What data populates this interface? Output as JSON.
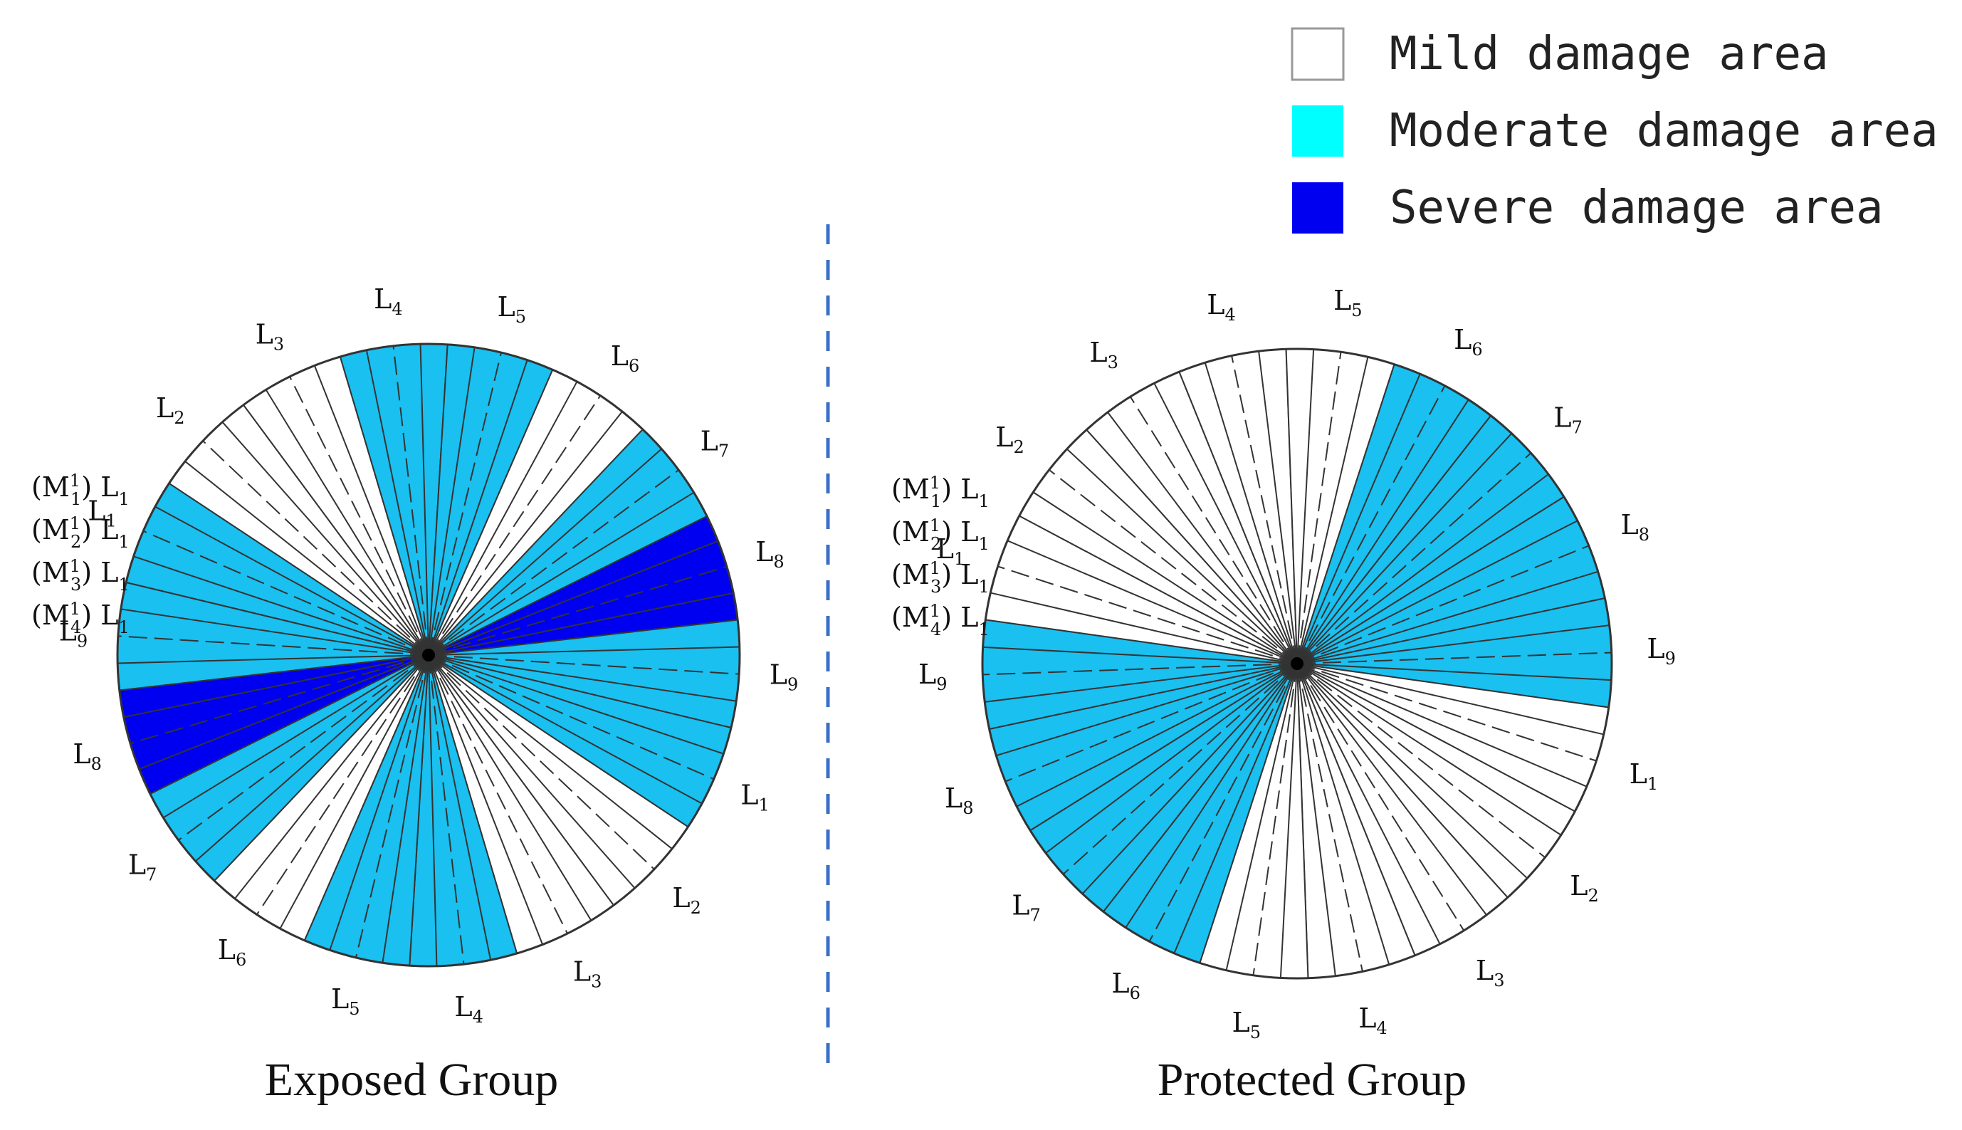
{
  "legend": {
    "items": [
      {
        "label": "Mild damage area",
        "color": "#ffffff"
      },
      {
        "label": "Moderate damage area",
        "color": "#19c0f0"
      },
      {
        "label": "Severe damage area",
        "color": "#0000f0"
      }
    ]
  },
  "sector_labels": [
    "L1",
    "L2",
    "L3",
    "L4",
    "L5",
    "L6",
    "L7",
    "L8",
    "L9"
  ],
  "circles": [
    {
      "title": "Exposed Group",
      "sector_severity": {
        "L1": "moderate",
        "L2": "mild",
        "L3": "mild",
        "L4": "moderate",
        "L5": "moderate",
        "L6": "mild",
        "L7": "moderate",
        "L8": "severe",
        "L9": "moderate"
      },
      "channel_labels": [
        {
          "ch": "1",
          "prefix": "(M",
          "suffix": ") L",
          "sub": "1"
        },
        {
          "ch": "2",
          "prefix": "(M",
          "suffix": ") L",
          "sub": "1"
        },
        {
          "ch": "3",
          "prefix": "(M",
          "suffix": ") L",
          "sub": "1"
        },
        {
          "ch": "4",
          "prefix": "(M",
          "suffix": ") L",
          "sub": "1"
        }
      ]
    },
    {
      "title": "Protected Group",
      "sector_severity": {
        "L1": "mild",
        "L2": "mild",
        "L3": "mild",
        "L4": "mild",
        "L5": "mild",
        "L6": "moderate",
        "L7": "moderate",
        "L8": "moderate",
        "L9": "moderate"
      },
      "channel_labels": [
        {
          "ch": "1",
          "prefix": "(M",
          "suffix": ") L",
          "sub": "1"
        },
        {
          "ch": "2",
          "prefix": "(M",
          "suffix": ") L",
          "sub": "1"
        },
        {
          "ch": "3",
          "prefix": "(M",
          "suffix": ") L",
          "sub": "1"
        },
        {
          "ch": "4",
          "prefix": "(M",
          "suffix": ") L",
          "sub": "1"
        }
      ]
    }
  ],
  "m_superscript": "1"
}
